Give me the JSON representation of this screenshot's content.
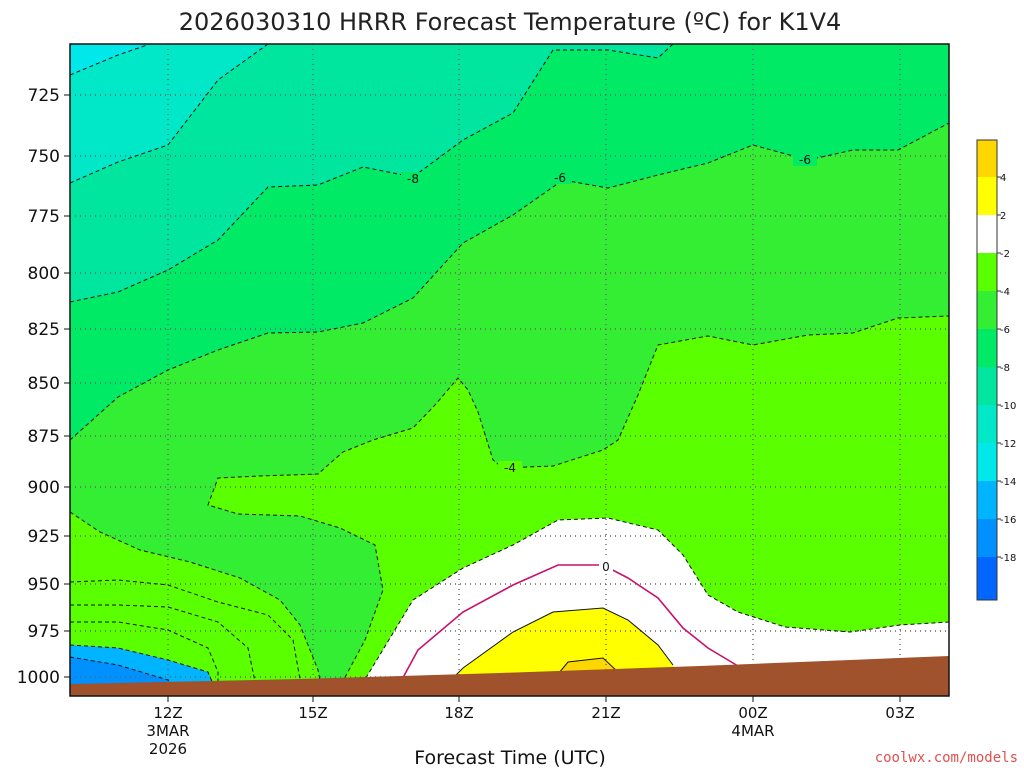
{
  "chart_data": {
    "type": "contour",
    "title": "2026030310 HRRR Forecast Temperature (ºC) for K1V4",
    "xlabel": "Forecast Time (UTC)",
    "ylabel": "",
    "y_axis": {
      "ticks": [
        725,
        750,
        775,
        800,
        825,
        850,
        875,
        900,
        925,
        950,
        975,
        1000
      ],
      "range": [
        1008,
        703
      ],
      "unit": "hPa"
    },
    "x_axis": {
      "ticks": [
        {
          "label": "12Z",
          "sub": [
            "3MAR",
            "2026"
          ]
        },
        {
          "label": "15Z",
          "sub": []
        },
        {
          "label": "18Z",
          "sub": []
        },
        {
          "label": "21Z",
          "sub": []
        },
        {
          "label": "00Z",
          "sub": [
            "4MAR"
          ]
        },
        {
          "label": "03Z",
          "sub": []
        }
      ],
      "range_hours": [
        -2,
        16
      ]
    },
    "grid": true,
    "contour_labels": [
      "-8",
      "-6",
      "-6",
      "-4",
      "0"
    ],
    "colorbar": {
      "placement": "right",
      "labels": [
        "4",
        "2",
        "-2",
        "-4",
        "-6",
        "-8",
        "-10",
        "-12",
        "-14",
        "-16",
        "-18"
      ],
      "colors": [
        "#ffd700",
        "#ffff00",
        "#ffffff",
        "#5aff00",
        "#33ee33",
        "#00ea66",
        "#00e69e",
        "#00e8c8",
        "#00e8ea",
        "#00b4ff",
        "#0090ff",
        "#0066ff"
      ]
    },
    "colors": {
      "warm_4_6": "#ffd700",
      "warm_2_4": "#ffff00",
      "near_zero": "#ffffff",
      "minus2_4": "#5aff00",
      "minus4_6": "#33ee33",
      "minus6_8": "#00ea66",
      "minus8_10": "#00e69e",
      "minus10_12": "#00e8c8",
      "minus12_14": "#00e8ea",
      "minus14_16": "#00b4ff",
      "minus16_18": "#0090ff",
      "ground": "#a0522d",
      "zero_line": "#c8106e"
    }
  },
  "credit": "coolwx.com/models"
}
